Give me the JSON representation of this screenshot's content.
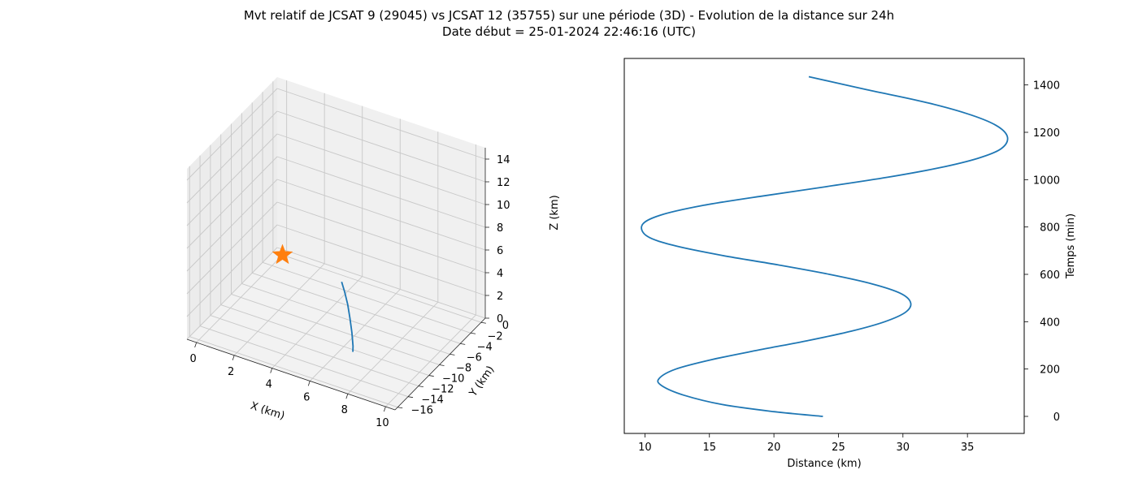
{
  "figure": {
    "title_line1": "Mvt relatif de JCSAT 9 (29045) vs JCSAT 12 (35755) sur une période (3D) - Evolution de la distance sur 24h",
    "title_line2": "Date début = 25-01-2024 22:46:16 (UTC)"
  },
  "chart_data": [
    {
      "type": "line",
      "projection": "3d",
      "xlabel": "X (km)",
      "ylabel": "Y (km)",
      "zlabel": "Z (km)",
      "xlim": [
        -0.5,
        10.5
      ],
      "ylim": [
        -16.5,
        0.8
      ],
      "zlim": [
        0,
        15
      ],
      "xticks": [
        0,
        2,
        4,
        6,
        8,
        10
      ],
      "yticks": [
        0,
        -2,
        -4,
        -6,
        -8,
        -10,
        -12,
        -14,
        -16
      ],
      "zticks": [
        0,
        2,
        4,
        6,
        8,
        10,
        12,
        14
      ],
      "grid": true,
      "series": [
        {
          "color": "#1f77b4",
          "x": [
            6.05,
            6.25,
            6.45,
            6.6,
            6.7,
            6.75,
            6.7
          ],
          "y": [
            -10.6,
            -10.75,
            -10.9,
            -11.0,
            -11.0,
            -10.95,
            -10.8
          ],
          "z": [
            6.0,
            5.3,
            4.4,
            3.3,
            2.1,
            0.9,
            0.3
          ]
        }
      ],
      "marker": {
        "symbol": "star",
        "color": "#ff7f0e",
        "x": 0,
        "y": 0,
        "z": 0
      }
    },
    {
      "type": "line",
      "xlabel": "Distance (km)",
      "ylabel": "Temps (min)",
      "y_axis_side": "right",
      "xlim": [
        8.4,
        39.4
      ],
      "ylim": [
        -72,
        1512
      ],
      "xticks": [
        10,
        15,
        20,
        25,
        30,
        35
      ],
      "yticks": [
        0,
        200,
        400,
        600,
        800,
        1000,
        1200,
        1400
      ],
      "grid": false,
      "series": [
        {
          "color": "#1f77b4",
          "x": [
            23.8,
            20.0,
            16.0,
            13.0,
            11.3,
            11.1,
            12.4,
            15.2,
            18.8,
            22.6,
            26.0,
            28.6,
            30.2,
            30.6,
            29.8,
            27.6,
            24.3,
            20.3,
            16.0,
            12.4,
            10.2,
            9.8,
            11.2,
            14.4,
            19.0,
            24.0,
            28.8,
            32.8,
            35.8,
            37.6,
            38.1,
            37.2,
            34.9,
            31.5,
            27.2,
            22.7
          ],
          "y": [
            0,
            20,
            50,
            90,
            130,
            160,
            200,
            240,
            280,
            320,
            360,
            400,
            440,
            480,
            520,
            560,
            600,
            640,
            680,
            720,
            760,
            810,
            850,
            890,
            930,
            970,
            1010,
            1050,
            1090,
            1130,
            1180,
            1230,
            1280,
            1330,
            1380,
            1435
          ]
        }
      ]
    }
  ]
}
